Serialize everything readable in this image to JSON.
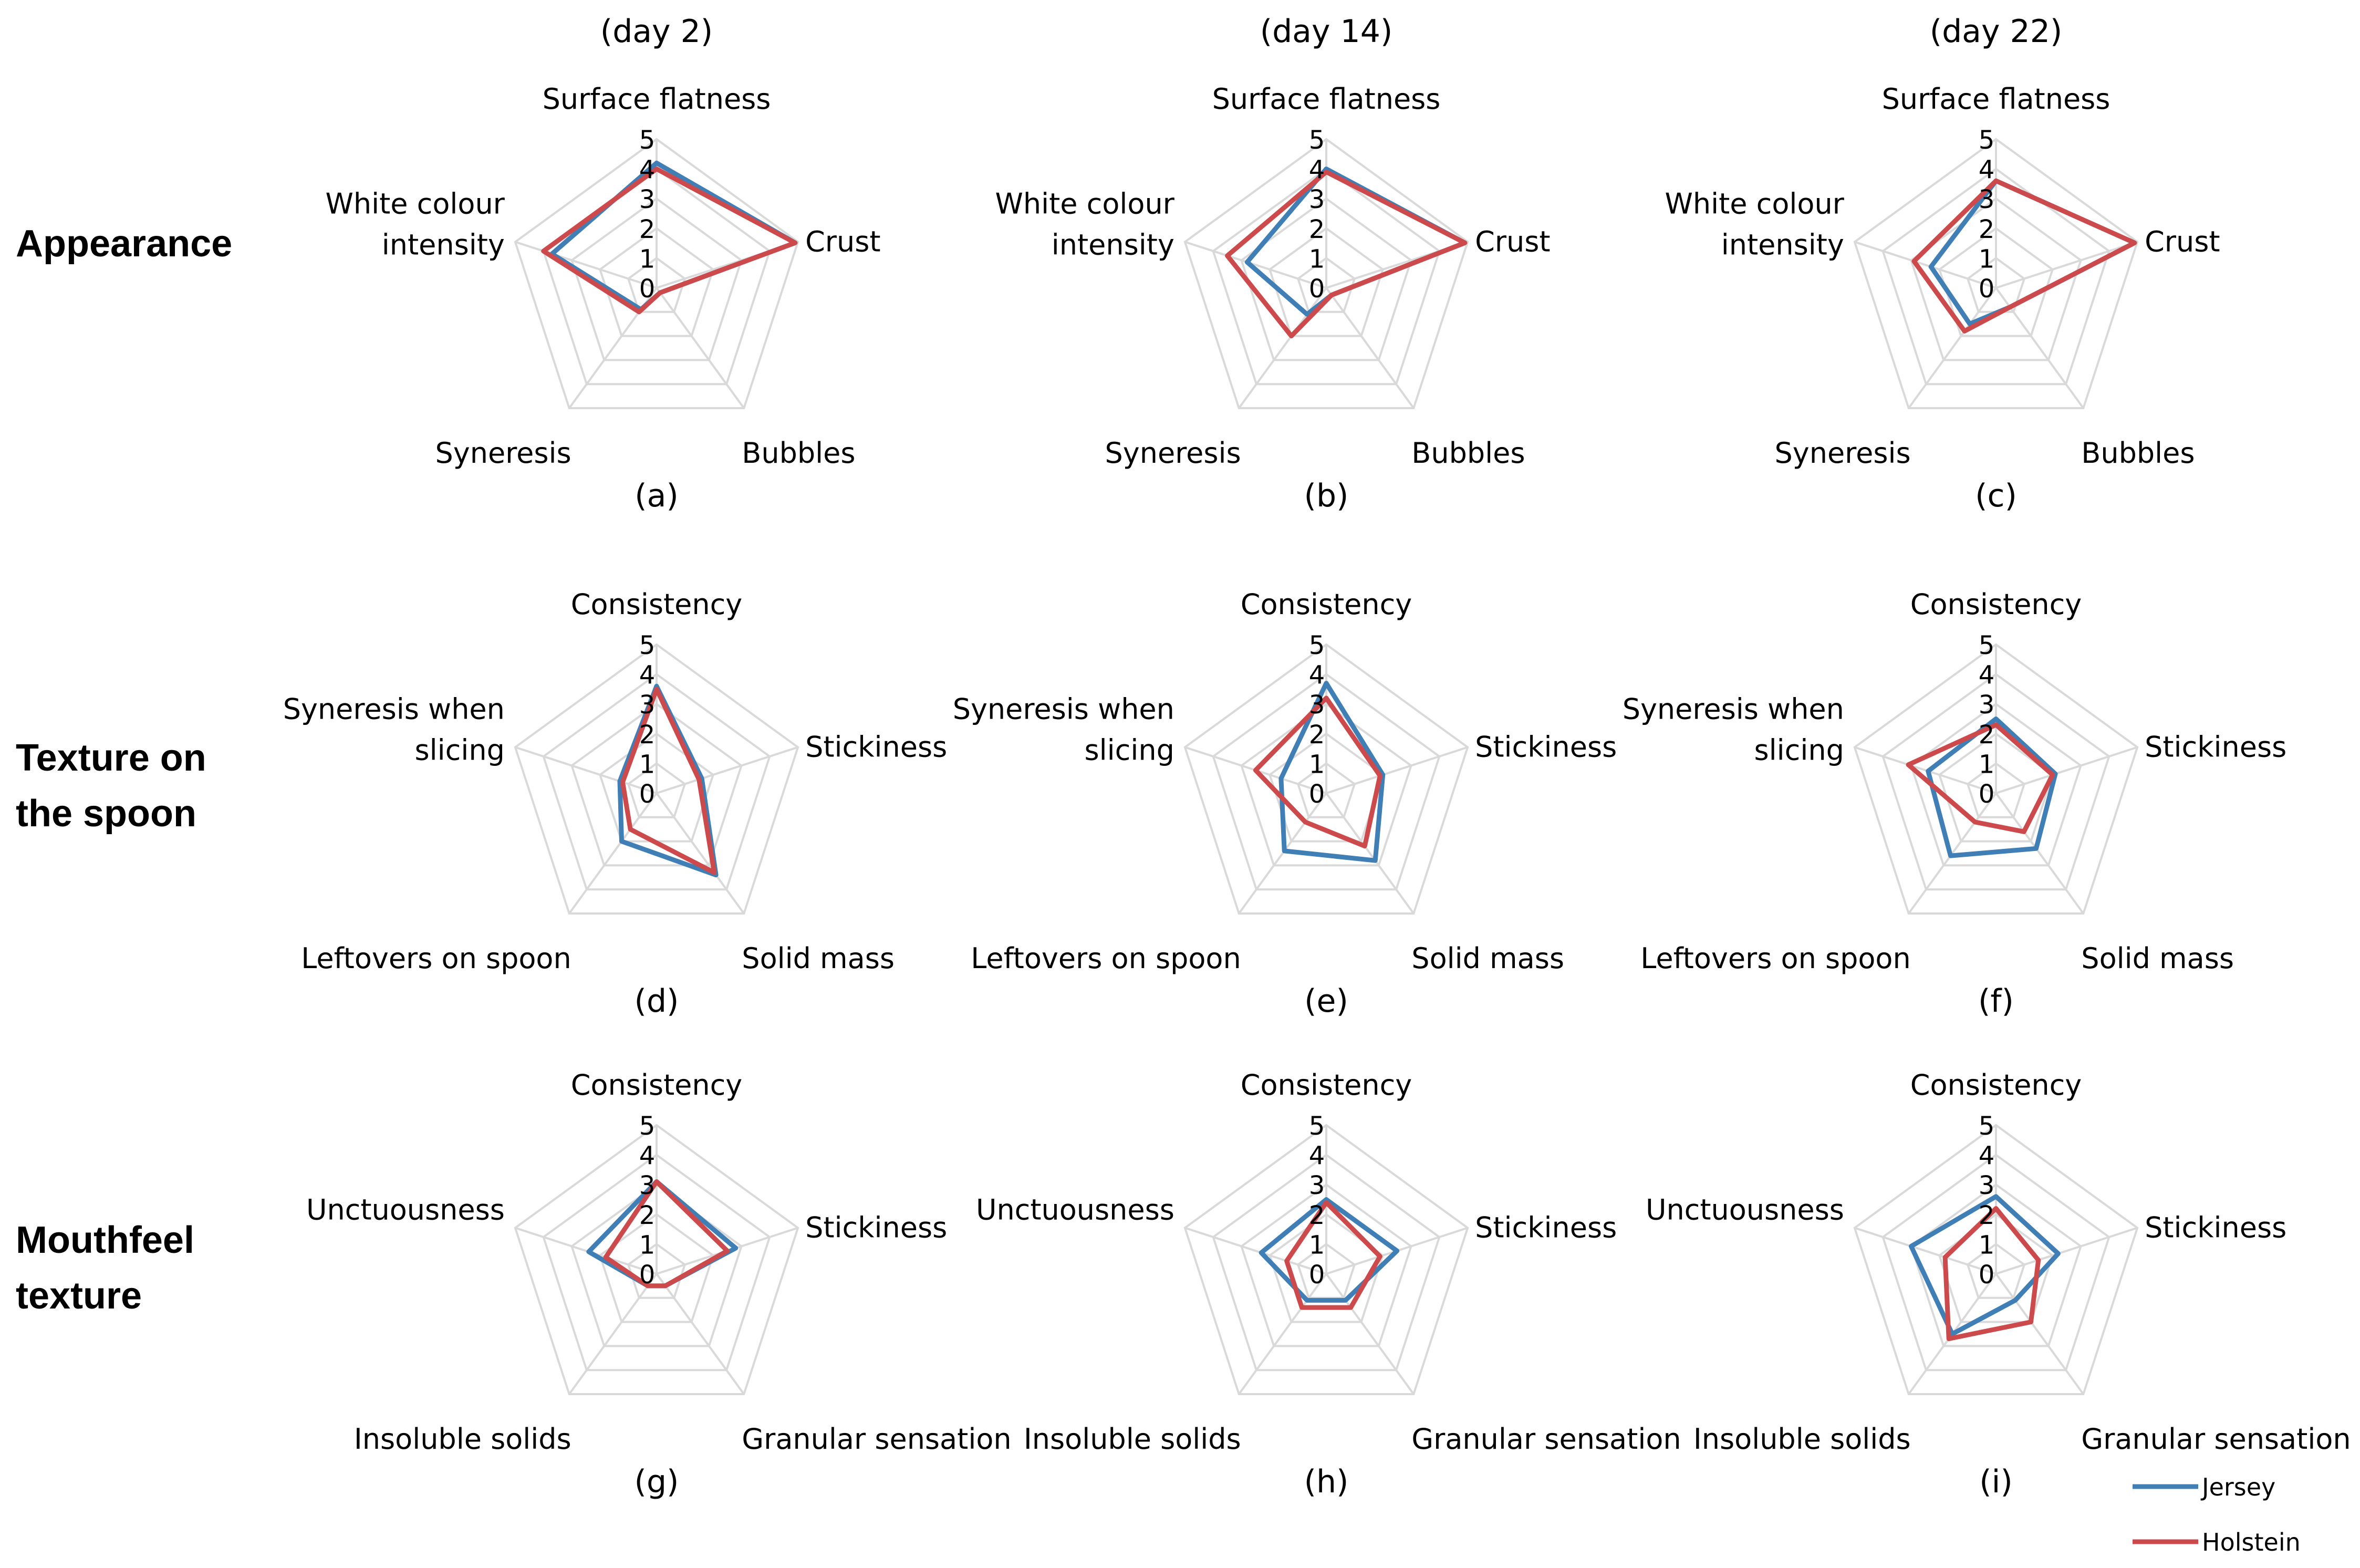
{
  "row_labels": [
    {
      "lines": [
        "Appearance"
      ]
    },
    {
      "lines": [
        "Texture on",
        "the spoon"
      ]
    },
    {
      "lines": [
        "Mouthfeel",
        "texture"
      ]
    }
  ],
  "day_labels": [
    "(day 2)",
    "(day 14)",
    "(day 22)"
  ],
  "legend": [
    {
      "name": "Jersey",
      "color": "#3f7fb6"
    },
    {
      "name": "Holstein",
      "color": "#cc4a4c"
    }
  ],
  "colors": {
    "jersey": "#3f7fb6",
    "holstein": "#cc4a4c",
    "grid": "#d9d9d9"
  },
  "chart_data": [
    {
      "type": "radar",
      "panel": "(a)",
      "group": "Appearance",
      "day": "(day 2)",
      "axes": [
        "Surface flatness",
        "Crust",
        "Bubbles",
        "Syneresis",
        "White colour intensity"
      ],
      "rlim": [
        0,
        5
      ],
      "ticks": [
        "0",
        "1",
        "2",
        "3",
        "4",
        "5"
      ],
      "series": [
        {
          "name": "Jersey",
          "values": [
            4.2,
            4.9,
            0.2,
            0.9,
            3.7
          ]
        },
        {
          "name": "Holstein",
          "values": [
            4.0,
            4.9,
            0.2,
            1.0,
            4.0
          ]
        }
      ]
    },
    {
      "type": "radar",
      "panel": "(b)",
      "group": "Appearance",
      "day": "(day 14)",
      "axes": [
        "Surface flatness",
        "Crust",
        "Bubbles",
        "Syneresis",
        "White colour intensity"
      ],
      "rlim": [
        0,
        5
      ],
      "ticks": [
        "0",
        "1",
        "2",
        "3",
        "4",
        "5"
      ],
      "series": [
        {
          "name": "Jersey",
          "values": [
            4.0,
            4.9,
            0.3,
            1.1,
            2.8
          ]
        },
        {
          "name": "Holstein",
          "values": [
            3.9,
            4.9,
            0.3,
            2.0,
            3.5
          ]
        }
      ]
    },
    {
      "type": "radar",
      "panel": "(c)",
      "group": "Appearance",
      "day": "(day 22)",
      "axes": [
        "Surface flatness",
        "Crust",
        "Bubbles",
        "Syneresis",
        "White colour intensity"
      ],
      "rlim": [
        0,
        5
      ],
      "ticks": [
        "0",
        "1",
        "2",
        "3",
        "4",
        "5"
      ],
      "series": [
        {
          "name": "Jersey",
          "values": [
            3.6,
            4.9,
            0.8,
            1.5,
            2.3
          ]
        },
        {
          "name": "Holstein",
          "values": [
            3.6,
            4.9,
            0.8,
            1.8,
            2.9
          ]
        }
      ]
    },
    {
      "type": "radar",
      "panel": "(d)",
      "group": "Texture on the spoon",
      "day": "(day 2)",
      "axes": [
        "Consistency",
        "Stickiness",
        "Solid mass",
        "Leftovers on spoon",
        "Syneresis when slicing"
      ],
      "rlim": [
        0,
        5
      ],
      "ticks": [
        "0",
        "1",
        "2",
        "3",
        "4",
        "5"
      ],
      "series": [
        {
          "name": "Jersey",
          "values": [
            3.6,
            1.6,
            3.4,
            2.0,
            1.3
          ]
        },
        {
          "name": "Holstein",
          "values": [
            3.5,
            1.5,
            3.3,
            1.5,
            1.2
          ]
        }
      ]
    },
    {
      "type": "radar",
      "panel": "(e)",
      "group": "Texture on the spoon",
      "day": "(day 14)",
      "axes": [
        "Consistency",
        "Stickiness",
        "Solid mass",
        "Leftovers on spoon",
        "Syneresis when slicing"
      ],
      "rlim": [
        0,
        5
      ],
      "ticks": [
        "0",
        "1",
        "2",
        "3",
        "4",
        "5"
      ],
      "series": [
        {
          "name": "Jersey",
          "values": [
            3.7,
            2.0,
            2.8,
            2.4,
            1.6
          ]
        },
        {
          "name": "Holstein",
          "values": [
            3.2,
            1.9,
            2.2,
            1.2,
            2.5
          ]
        }
      ]
    },
    {
      "type": "radar",
      "panel": "(f)",
      "group": "Texture on the spoon",
      "day": "(day 22)",
      "axes": [
        "Consistency",
        "Stickiness",
        "Solid mass",
        "Leftovers on spoon",
        "Syneresis when slicing"
      ],
      "rlim": [
        0,
        5
      ],
      "ticks": [
        "0",
        "1",
        "2",
        "3",
        "4",
        "5"
      ],
      "series": [
        {
          "name": "Jersey",
          "values": [
            2.5,
            2.1,
            2.3,
            2.6,
            2.4
          ]
        },
        {
          "name": "Holstein",
          "values": [
            2.3,
            2.0,
            1.6,
            1.2,
            3.1
          ]
        }
      ]
    },
    {
      "type": "radar",
      "panel": "(g)",
      "group": "Mouthfeel texture",
      "day": "(day 2)",
      "axes": [
        "Consistency",
        "Stickiness",
        "Granular sensation",
        "Insoluble solids",
        "Unctuousness"
      ],
      "rlim": [
        0,
        5
      ],
      "ticks": [
        "0",
        "1",
        "2",
        "3",
        "4",
        "5"
      ],
      "series": [
        {
          "name": "Jersey",
          "values": [
            3.1,
            2.8,
            0.5,
            0.5,
            2.4
          ]
        },
        {
          "name": "Holstein",
          "values": [
            3.1,
            2.5,
            0.5,
            0.5,
            1.8
          ]
        }
      ]
    },
    {
      "type": "radar",
      "panel": "(h)",
      "group": "Mouthfeel texture",
      "day": "(day 14)",
      "axes": [
        "Consistency",
        "Stickiness",
        "Granular sensation",
        "Insoluble solids",
        "Unctuousness"
      ],
      "rlim": [
        0,
        5
      ],
      "ticks": [
        "0",
        "1",
        "2",
        "3",
        "4",
        "5"
      ],
      "series": [
        {
          "name": "Jersey",
          "values": [
            2.5,
            2.5,
            1.1,
            1.1,
            2.3
          ]
        },
        {
          "name": "Holstein",
          "values": [
            2.4,
            1.9,
            1.4,
            1.4,
            1.4
          ]
        }
      ]
    },
    {
      "type": "radar",
      "panel": "(i)",
      "group": "Mouthfeel texture",
      "day": "(day 22)",
      "axes": [
        "Consistency",
        "Stickiness",
        "Granular sensation",
        "Insoluble solids",
        "Unctuousness"
      ],
      "rlim": [
        0,
        5
      ],
      "ticks": [
        "0",
        "1",
        "2",
        "3",
        "4",
        "5"
      ],
      "series": [
        {
          "name": "Jersey",
          "values": [
            2.6,
            2.2,
            1.1,
            2.5,
            3.0
          ]
        },
        {
          "name": "Holstein",
          "values": [
            2.2,
            1.5,
            2.0,
            2.7,
            1.8
          ]
        }
      ]
    }
  ]
}
